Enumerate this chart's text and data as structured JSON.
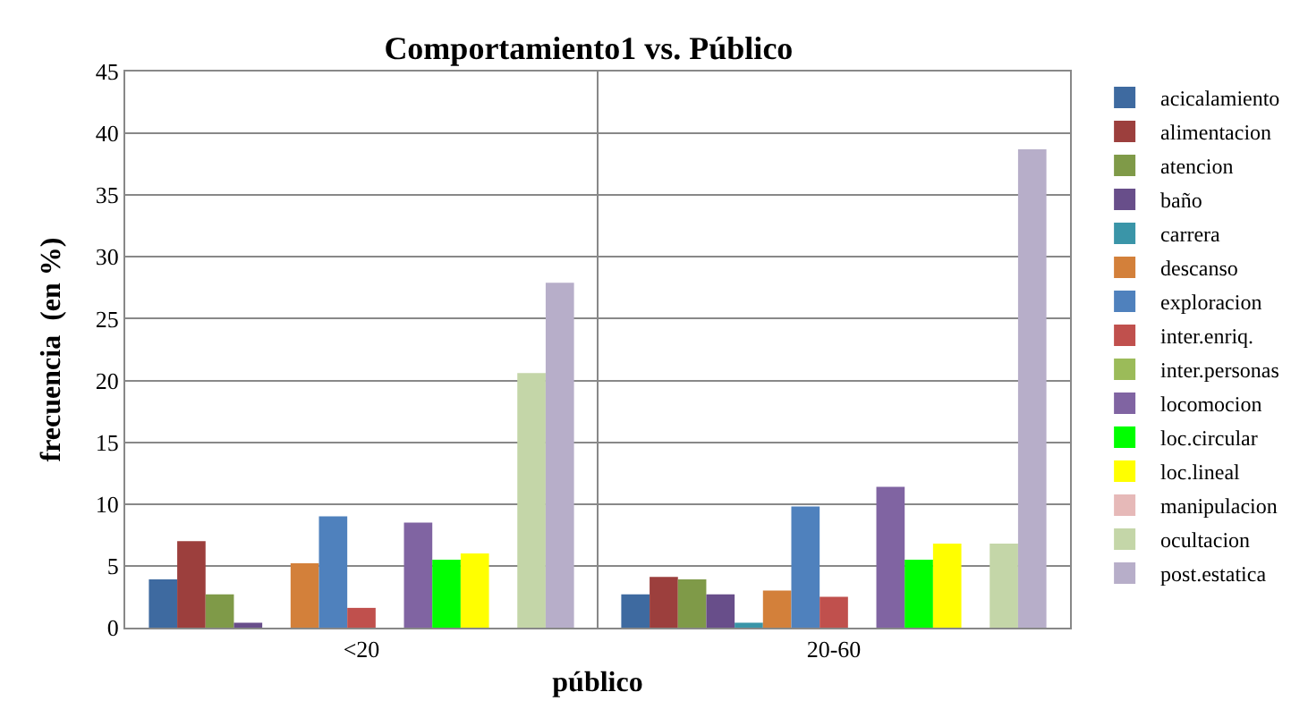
{
  "chart_data": {
    "type": "bar",
    "title": "Comportamiento1 vs. Público",
    "xlabel": "público",
    "ylabel": "frecuencia  (en %)",
    "categories": [
      "<20",
      "20-60"
    ],
    "series": [
      {
        "name": "acicalamiento",
        "color": "#3e6aa0",
        "values": [
          3.9,
          2.7
        ]
      },
      {
        "name": "alimentacion",
        "color": "#9c3f3d",
        "values": [
          7.0,
          4.1
        ]
      },
      {
        "name": "atencion",
        "color": "#7f9a48",
        "values": [
          2.7,
          3.9
        ]
      },
      {
        "name": "baño",
        "color": "#684e8a",
        "values": [
          0.4,
          2.7
        ]
      },
      {
        "name": "carrera",
        "color": "#3a95a8",
        "values": [
          0,
          0.4
        ]
      },
      {
        "name": "descanso",
        "color": "#d3803a",
        "values": [
          5.2,
          3.0
        ]
      },
      {
        "name": "exploracion",
        "color": "#4f81bd",
        "values": [
          9.0,
          9.8
        ]
      },
      {
        "name": "inter.enriq.",
        "color": "#c0504d",
        "values": [
          1.6,
          2.5
        ]
      },
      {
        "name": "inter.personas",
        "color": "#9bbb59",
        "values": [
          0,
          0
        ]
      },
      {
        "name": "locomocion",
        "color": "#8064a2",
        "values": [
          8.5,
          11.4
        ]
      },
      {
        "name": "loc.circular",
        "color": "#00ff00",
        "values": [
          5.5,
          5.5
        ]
      },
      {
        "name": "loc.lineal",
        "color": "#ffff00",
        "values": [
          6.0,
          6.8
        ]
      },
      {
        "name": "manipulacion",
        "color": "#e6b9b8",
        "values": [
          0,
          0
        ]
      },
      {
        "name": "ocultacion",
        "color": "#c4d6a8",
        "values": [
          20.6,
          6.8
        ]
      },
      {
        "name": "post.estatica",
        "color": "#b7aec9",
        "values": [
          27.9,
          38.7
        ]
      }
    ],
    "ylim": [
      0,
      45
    ],
    "yticks": [
      0,
      5,
      10,
      15,
      20,
      25,
      30,
      35,
      40,
      45
    ],
    "grid": true,
    "legend": "right"
  }
}
